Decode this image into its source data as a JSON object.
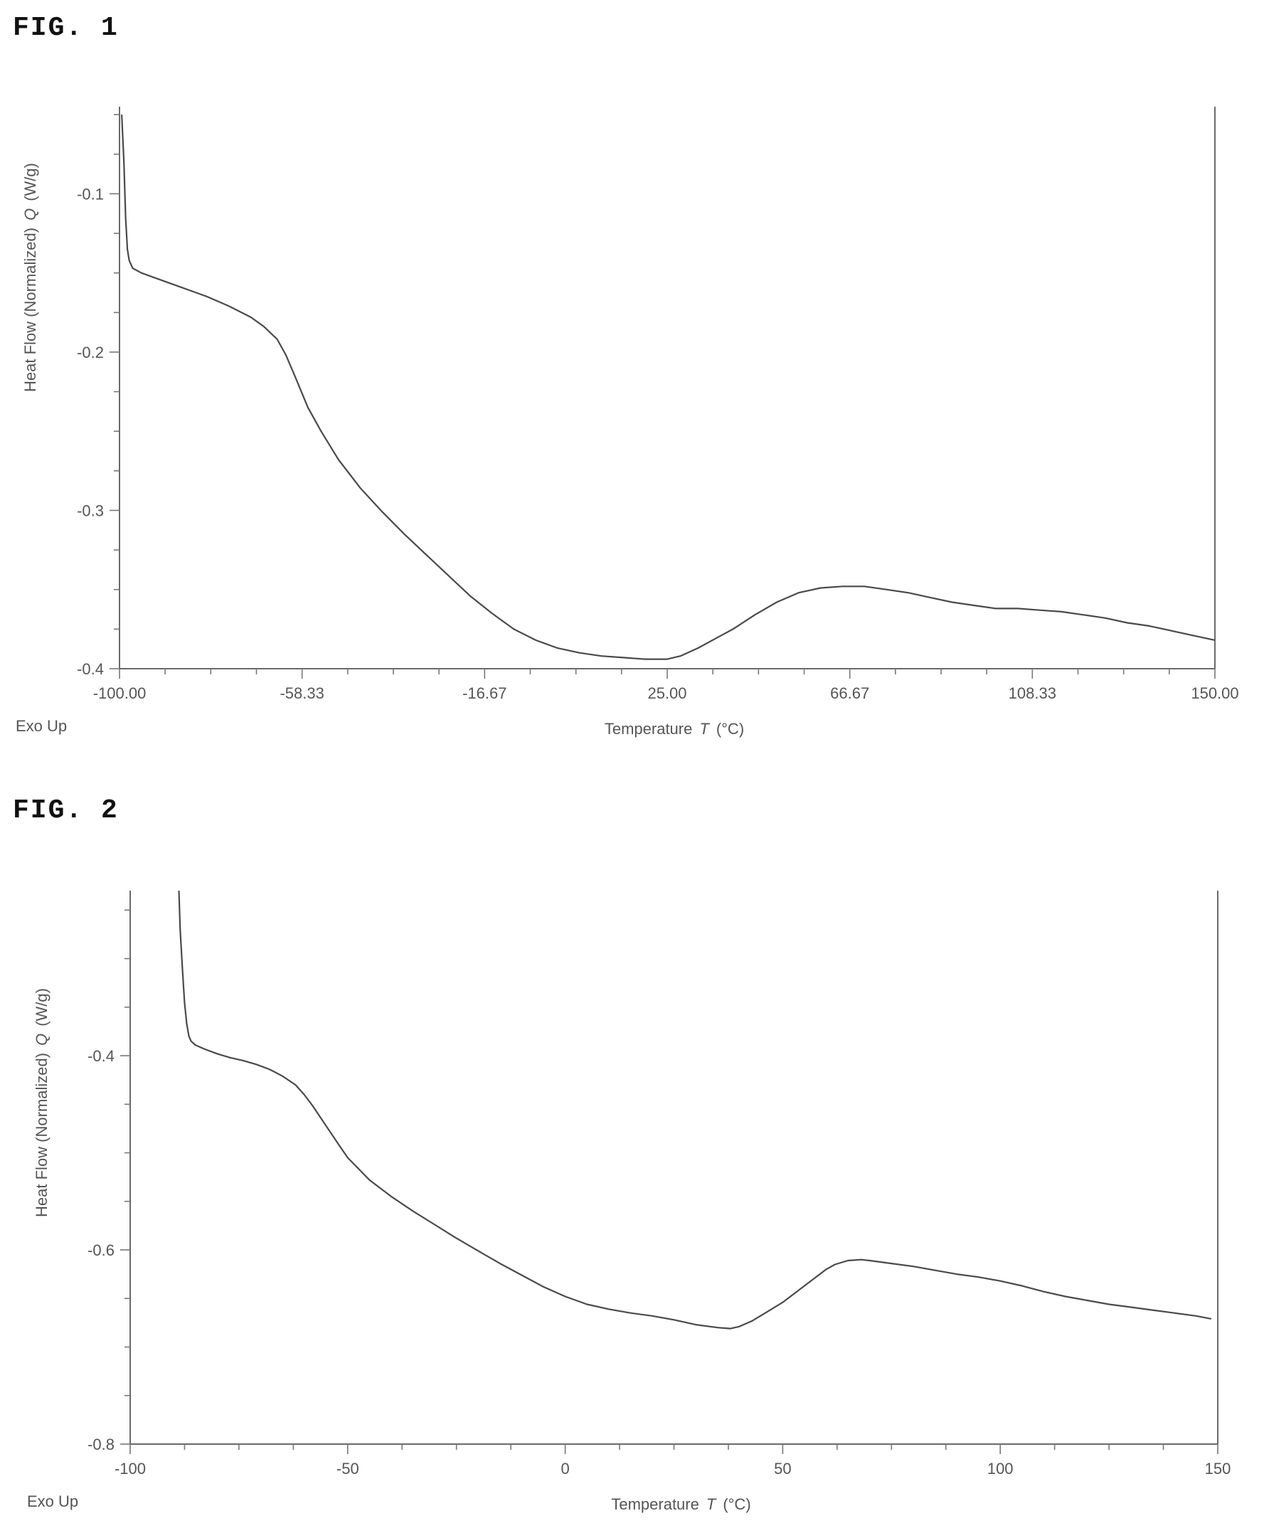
{
  "chart_data": [
    {
      "type": "line",
      "figure_label": "FIG. 1",
      "xlabel": "Temperature",
      "xlabel_symbol": "T",
      "xlabel_unit": "(°C)",
      "ylabel": "Heat Flow (Normalized)",
      "ylabel_symbol": "Q",
      "ylabel_unit": "(W/g)",
      "corner_note": "Exo Up",
      "xlim": [
        -100,
        150
      ],
      "ylim": [
        -0.4,
        -0.045
      ],
      "x_ticks": [
        -100,
        -58.33,
        -16.67,
        25,
        66.67,
        108.33,
        150
      ],
      "x_tick_labels": [
        "-100.00",
        "-58.33",
        "-16.67",
        "25.00",
        "66.67",
        "108.33",
        "150.00"
      ],
      "y_ticks": [
        -0.4,
        -0.3,
        -0.2,
        -0.1
      ],
      "y_tick_labels": [
        "-0.4",
        "-0.3",
        "-0.2",
        "-0.1"
      ],
      "grid": false,
      "series": [
        {
          "x": [
            -99.5,
            -99.0,
            -98.6,
            -98.2,
            -97.8,
            -97.0,
            -95.0,
            -90.0,
            -85.0,
            -80.0,
            -75.0,
            -70.0,
            -67.0,
            -64.0,
            -62.0,
            -60.0,
            -57.0,
            -54.0,
            -50.0,
            -45.0,
            -40.0,
            -35.0,
            -30.0,
            -25.0,
            -20.0,
            -15.0,
            -10.0,
            -5.0,
            0.0,
            5.0,
            10.0,
            15.0,
            20.0,
            25.0,
            28.0,
            32.0,
            36.0,
            40.0,
            45.0,
            50.0,
            55.0,
            60.0,
            65.0,
            70.0,
            75.0,
            80.0,
            85.0,
            90.0,
            95.0,
            100.0,
            105.0,
            110.0,
            115.0,
            120.0,
            125.0,
            130.0,
            135.0,
            140.0,
            145.0,
            150.0
          ],
          "y": [
            -0.05,
            -0.08,
            -0.115,
            -0.135,
            -0.142,
            -0.147,
            -0.15,
            -0.155,
            -0.16,
            -0.165,
            -0.171,
            -0.178,
            -0.184,
            -0.192,
            -0.202,
            -0.215,
            -0.235,
            -0.25,
            -0.268,
            -0.286,
            -0.301,
            -0.315,
            -0.328,
            -0.341,
            -0.354,
            -0.365,
            -0.375,
            -0.382,
            -0.387,
            -0.39,
            -0.392,
            -0.393,
            -0.394,
            -0.394,
            -0.392,
            -0.387,
            -0.381,
            -0.375,
            -0.366,
            -0.358,
            -0.352,
            -0.349,
            -0.348,
            -0.348,
            -0.35,
            -0.352,
            -0.355,
            -0.358,
            -0.36,
            -0.362,
            -0.362,
            -0.363,
            -0.364,
            -0.366,
            -0.368,
            -0.371,
            -0.373,
            -0.376,
            -0.379,
            -0.382
          ]
        }
      ]
    },
    {
      "type": "line",
      "figure_label": "FIG. 2",
      "xlabel": "Temperature",
      "xlabel_symbol": "T",
      "xlabel_unit": "(°C)",
      "ylabel": "Heat Flow (Normalized)",
      "ylabel_symbol": "Q",
      "ylabel_unit": "(W/g)",
      "corner_note": "Exo Up",
      "xlim": [
        -100,
        150
      ],
      "ylim": [
        -0.8,
        -0.23
      ],
      "x_ticks": [
        -100,
        -50,
        0,
        50,
        100,
        150
      ],
      "x_tick_labels": [
        "-100",
        "-50",
        "0",
        "50",
        "100",
        "150"
      ],
      "y_ticks": [
        -0.8,
        -0.6,
        -0.4
      ],
      "y_tick_labels": [
        "-0.8",
        "-0.6",
        "-0.4"
      ],
      "grid": false,
      "series": [
        {
          "x": [
            -88.8,
            -88.5,
            -88.0,
            -87.5,
            -87.0,
            -86.5,
            -86.0,
            -85.0,
            -83.0,
            -80.0,
            -77.0,
            -74.0,
            -71.0,
            -68.0,
            -65.0,
            -62.0,
            -60.0,
            -58.0,
            -55.0,
            -52.0,
            -50.0,
            -45.0,
            -40.0,
            -35.0,
            -30.0,
            -25.0,
            -20.0,
            -15.0,
            -10.0,
            -5.0,
            0.0,
            5.0,
            10.0,
            15.0,
            20.0,
            25.0,
            30.0,
            35.0,
            38.0,
            40.0,
            43.0,
            46.0,
            50.0,
            55.0,
            60.0,
            62.0,
            65.0,
            68.0,
            70.0,
            75.0,
            80.0,
            85.0,
            90.0,
            95.0,
            100.0,
            105.0,
            110.0,
            115.0,
            120.0,
            125.0,
            130.0,
            135.0,
            140.0,
            145.0,
            148.5
          ],
          "y": [
            -0.23,
            -0.27,
            -0.31,
            -0.345,
            -0.367,
            -0.38,
            -0.385,
            -0.389,
            -0.393,
            -0.398,
            -0.402,
            -0.405,
            -0.409,
            -0.414,
            -0.421,
            -0.43,
            -0.44,
            -0.452,
            -0.472,
            -0.492,
            -0.505,
            -0.528,
            -0.545,
            -0.56,
            -0.574,
            -0.588,
            -0.601,
            -0.614,
            -0.626,
            -0.638,
            -0.648,
            -0.656,
            -0.661,
            -0.665,
            -0.668,
            -0.672,
            -0.677,
            -0.68,
            -0.681,
            -0.679,
            -0.673,
            -0.665,
            -0.654,
            -0.637,
            -0.62,
            -0.615,
            -0.611,
            -0.61,
            -0.611,
            -0.614,
            -0.617,
            -0.621,
            -0.625,
            -0.628,
            -0.632,
            -0.637,
            -0.643,
            -0.648,
            -0.652,
            -0.656,
            -0.659,
            -0.662,
            -0.665,
            -0.668,
            -0.671
          ]
        }
      ]
    }
  ]
}
